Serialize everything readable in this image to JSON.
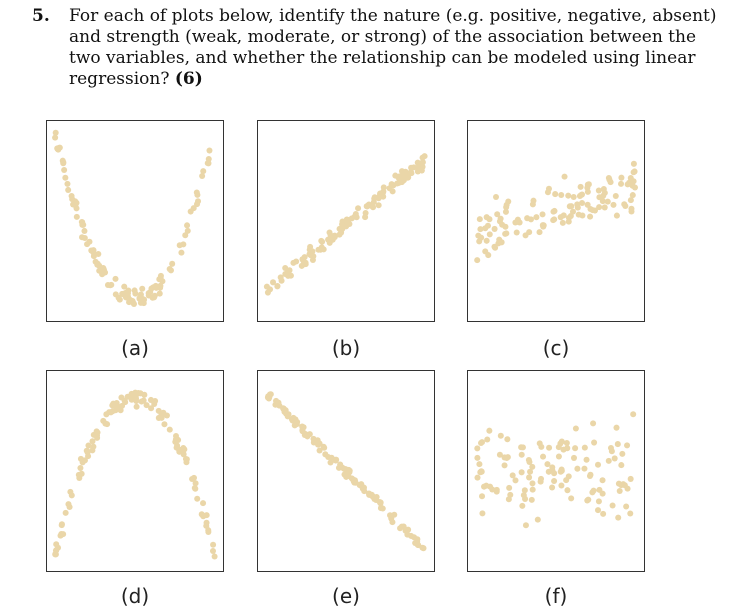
{
  "question": {
    "number": "5.",
    "text": "For each of plots below, identify the nature (e.g. positive, negative, absent) and strength (weak, moderate, or strong) of the association between the two variables, and whether the relationship can be modeled using linear regression?",
    "marks": "(6)"
  },
  "colors": {
    "point": "#ead6a8",
    "frame": "#333333"
  },
  "plots": [
    {
      "label": "(a)",
      "pattern": "u-shape"
    },
    {
      "label": "(b)",
      "pattern": "strong-positive-linear"
    },
    {
      "label": "(c)",
      "pattern": "weak-positive"
    },
    {
      "label": "(d)",
      "pattern": "inverted-u-shape"
    },
    {
      "label": "(e)",
      "pattern": "strong-negative-linear"
    },
    {
      "label": "(f)",
      "pattern": "no-association"
    }
  ]
}
